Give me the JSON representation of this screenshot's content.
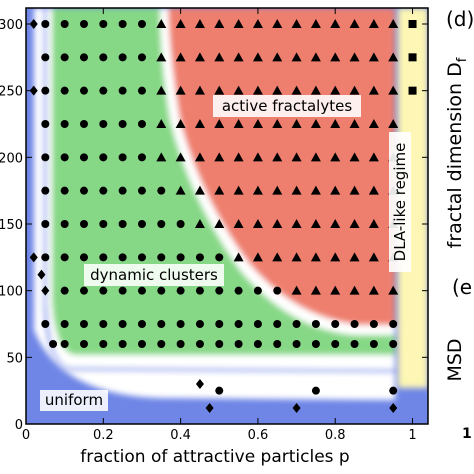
{
  "chart_data": {
    "type": "scatter",
    "title": "",
    "xlabel": "fraction of attractive particles p",
    "ylabel": "",
    "xlim": [
      0,
      1.04
    ],
    "ylim": [
      0,
      312
    ],
    "xticks": [
      "0",
      "0.2",
      "0.4",
      "0.6",
      "0.8",
      "1"
    ],
    "xtick_values": [
      0,
      0.2,
      0.4,
      0.6,
      0.8,
      1
    ],
    "yticks": [
      "0",
      "50",
      "100",
      "150",
      "200",
      "250",
      "300"
    ],
    "ytick_values": [
      0,
      50,
      100,
      150,
      200,
      250,
      300
    ],
    "grid": false,
    "legend": "none",
    "regions": [
      {
        "name": "uniform",
        "color": "#6f86e6"
      },
      {
        "name": "dynamic clusters",
        "color": "#86d886"
      },
      {
        "name": "active fractalytes",
        "color": "#ee7f6e"
      },
      {
        "name": "DLA-like regime",
        "color": "#fdf6b4"
      }
    ],
    "marker_symbols": {
      "uniform": "diamond",
      "dynamic clusters": "circle",
      "active fractalytes": "triangle",
      "DLA-like regime": "square"
    },
    "marker_color": "#000000",
    "points": {
      "uniform": [
        [
          0.02,
          300
        ],
        [
          0.02,
          250
        ],
        [
          0.02,
          125
        ],
        [
          0.04,
          112
        ],
        [
          0.05,
          100
        ],
        [
          0.45,
          30
        ],
        [
          0.475,
          12
        ],
        [
          0.7,
          12
        ],
        [
          0.95,
          12
        ]
      ],
      "dynamic clusters": [
        [
          0.05,
          300
        ],
        [
          0.1,
          300
        ],
        [
          0.15,
          300
        ],
        [
          0.2,
          300
        ],
        [
          0.25,
          300
        ],
        [
          0.3,
          300
        ],
        [
          0.05,
          275
        ],
        [
          0.1,
          275
        ],
        [
          0.15,
          275
        ],
        [
          0.2,
          275
        ],
        [
          0.25,
          275
        ],
        [
          0.3,
          275
        ],
        [
          0.05,
          250
        ],
        [
          0.1,
          250
        ],
        [
          0.15,
          250
        ],
        [
          0.2,
          250
        ],
        [
          0.25,
          250
        ],
        [
          0.3,
          250
        ],
        [
          0.05,
          225
        ],
        [
          0.1,
          225
        ],
        [
          0.15,
          225
        ],
        [
          0.2,
          225
        ],
        [
          0.25,
          225
        ],
        [
          0.3,
          225
        ],
        [
          0.05,
          200
        ],
        [
          0.1,
          200
        ],
        [
          0.15,
          200
        ],
        [
          0.2,
          200
        ],
        [
          0.25,
          200
        ],
        [
          0.3,
          200
        ],
        [
          0.05,
          175
        ],
        [
          0.1,
          175
        ],
        [
          0.15,
          175
        ],
        [
          0.2,
          175
        ],
        [
          0.25,
          175
        ],
        [
          0.3,
          175
        ],
        [
          0.35,
          175
        ],
        [
          0.05,
          150
        ],
        [
          0.1,
          150
        ],
        [
          0.15,
          150
        ],
        [
          0.2,
          150
        ],
        [
          0.25,
          150
        ],
        [
          0.3,
          150
        ],
        [
          0.35,
          150
        ],
        [
          0.4,
          150
        ],
        [
          0.05,
          125
        ],
        [
          0.1,
          125
        ],
        [
          0.15,
          125
        ],
        [
          0.2,
          125
        ],
        [
          0.25,
          125
        ],
        [
          0.3,
          125
        ],
        [
          0.35,
          125
        ],
        [
          0.4,
          125
        ],
        [
          0.45,
          125
        ],
        [
          0.5,
          125
        ],
        [
          0.1,
          100
        ],
        [
          0.15,
          100
        ],
        [
          0.2,
          100
        ],
        [
          0.25,
          100
        ],
        [
          0.3,
          100
        ],
        [
          0.35,
          100
        ],
        [
          0.4,
          100
        ],
        [
          0.45,
          100
        ],
        [
          0.5,
          100
        ],
        [
          0.55,
          100
        ],
        [
          0.6,
          100
        ],
        [
          0.65,
          100
        ],
        [
          0.05,
          75
        ],
        [
          0.1,
          75
        ],
        [
          0.15,
          75
        ],
        [
          0.2,
          75
        ],
        [
          0.25,
          75
        ],
        [
          0.3,
          75
        ],
        [
          0.35,
          75
        ],
        [
          0.4,
          75
        ],
        [
          0.45,
          75
        ],
        [
          0.5,
          75
        ],
        [
          0.55,
          75
        ],
        [
          0.6,
          75
        ],
        [
          0.65,
          75
        ],
        [
          0.7,
          75
        ],
        [
          0.75,
          75
        ],
        [
          0.8,
          75
        ],
        [
          0.85,
          75
        ],
        [
          0.9,
          75
        ],
        [
          0.95,
          75
        ],
        [
          0.07,
          60
        ],
        [
          0.1,
          60
        ],
        [
          0.15,
          60
        ],
        [
          0.2,
          60
        ],
        [
          0.25,
          60
        ],
        [
          0.3,
          60
        ],
        [
          0.35,
          60
        ],
        [
          0.4,
          60
        ],
        [
          0.45,
          60
        ],
        [
          0.5,
          60
        ],
        [
          0.55,
          60
        ],
        [
          0.6,
          60
        ],
        [
          0.65,
          60
        ],
        [
          0.7,
          60
        ],
        [
          0.75,
          60
        ],
        [
          0.8,
          60
        ],
        [
          0.85,
          60
        ],
        [
          0.9,
          60
        ],
        [
          0.95,
          60
        ],
        [
          0.5,
          25
        ],
        [
          0.75,
          25
        ],
        [
          0.95,
          25
        ]
      ],
      "active fractalytes": [
        [
          0.35,
          300
        ],
        [
          0.4,
          300
        ],
        [
          0.45,
          300
        ],
        [
          0.5,
          300
        ],
        [
          0.55,
          300
        ],
        [
          0.6,
          300
        ],
        [
          0.65,
          300
        ],
        [
          0.7,
          300
        ],
        [
          0.75,
          300
        ],
        [
          0.8,
          300
        ],
        [
          0.85,
          300
        ],
        [
          0.9,
          300
        ],
        [
          0.95,
          300
        ],
        [
          0.35,
          275
        ],
        [
          0.4,
          275
        ],
        [
          0.45,
          275
        ],
        [
          0.5,
          275
        ],
        [
          0.55,
          275
        ],
        [
          0.6,
          275
        ],
        [
          0.65,
          275
        ],
        [
          0.7,
          275
        ],
        [
          0.75,
          275
        ],
        [
          0.8,
          275
        ],
        [
          0.85,
          275
        ],
        [
          0.9,
          275
        ],
        [
          0.95,
          275
        ],
        [
          0.35,
          250
        ],
        [
          0.4,
          250
        ],
        [
          0.45,
          250
        ],
        [
          0.5,
          250
        ],
        [
          0.55,
          250
        ],
        [
          0.6,
          250
        ],
        [
          0.65,
          250
        ],
        [
          0.7,
          250
        ],
        [
          0.75,
          250
        ],
        [
          0.8,
          250
        ],
        [
          0.85,
          250
        ],
        [
          0.9,
          250
        ],
        [
          0.95,
          250
        ],
        [
          0.35,
          225
        ],
        [
          0.4,
          225
        ],
        [
          0.45,
          225
        ],
        [
          0.5,
          225
        ],
        [
          0.55,
          225
        ],
        [
          0.6,
          225
        ],
        [
          0.65,
          225
        ],
        [
          0.7,
          225
        ],
        [
          0.75,
          225
        ],
        [
          0.8,
          225
        ],
        [
          0.85,
          225
        ],
        [
          0.9,
          225
        ],
        [
          0.95,
          225
        ],
        [
          0.35,
          200
        ],
        [
          0.4,
          200
        ],
        [
          0.45,
          200
        ],
        [
          0.5,
          200
        ],
        [
          0.55,
          200
        ],
        [
          0.6,
          200
        ],
        [
          0.65,
          200
        ],
        [
          0.7,
          200
        ],
        [
          0.75,
          200
        ],
        [
          0.8,
          200
        ],
        [
          0.85,
          200
        ],
        [
          0.9,
          200
        ],
        [
          0.95,
          200
        ],
        [
          0.4,
          175
        ],
        [
          0.45,
          175
        ],
        [
          0.5,
          175
        ],
        [
          0.55,
          175
        ],
        [
          0.6,
          175
        ],
        [
          0.65,
          175
        ],
        [
          0.7,
          175
        ],
        [
          0.75,
          175
        ],
        [
          0.8,
          175
        ],
        [
          0.85,
          175
        ],
        [
          0.9,
          175
        ],
        [
          0.95,
          175
        ],
        [
          0.45,
          150
        ],
        [
          0.5,
          150
        ],
        [
          0.55,
          150
        ],
        [
          0.6,
          150
        ],
        [
          0.65,
          150
        ],
        [
          0.7,
          150
        ],
        [
          0.75,
          150
        ],
        [
          0.8,
          150
        ],
        [
          0.85,
          150
        ],
        [
          0.9,
          150
        ],
        [
          0.95,
          150
        ],
        [
          0.55,
          125
        ],
        [
          0.6,
          125
        ],
        [
          0.65,
          125
        ],
        [
          0.7,
          125
        ],
        [
          0.75,
          125
        ],
        [
          0.8,
          125
        ],
        [
          0.85,
          125
        ],
        [
          0.9,
          125
        ],
        [
          0.95,
          125
        ],
        [
          0.7,
          100
        ],
        [
          0.75,
          100
        ],
        [
          0.8,
          100
        ],
        [
          0.85,
          100
        ],
        [
          0.9,
          100
        ],
        [
          0.95,
          100
        ]
      ],
      "DLA-like regime": [
        [
          1,
          300
        ],
        [
          1,
          275
        ],
        [
          1,
          250
        ]
      ]
    }
  },
  "panel_labels": {
    "d": "(d)",
    "e": "(e",
    "fractal_dimension": "fractal dimension D",
    "fractal_subscript": "f",
    "msd": "MSD",
    "bottom_mark": "1"
  },
  "region_labels": {
    "uniform": "uniform",
    "dynamic_clusters": "dynamic clusters",
    "active_fractalytes": "active fractalytes",
    "dla_like": "DLA-like regime"
  }
}
